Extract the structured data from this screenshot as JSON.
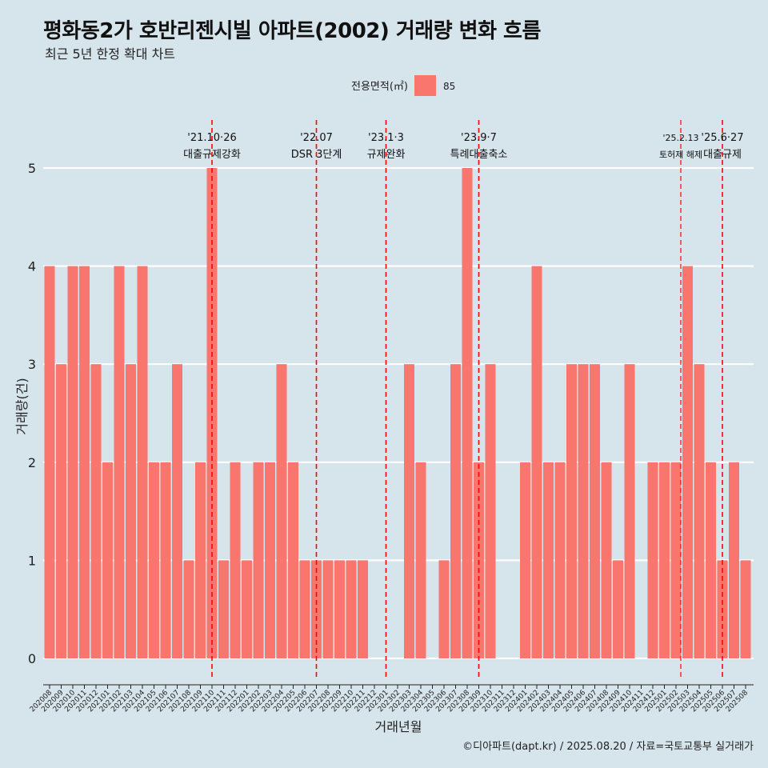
{
  "title": "평화동2가 호반리젠시빌 아파트(2002) 거래량 변화 흐름",
  "subtitle": "최근 5년 한정 확대 차트",
  "caption": "©디아파트(dapt.kr) / 2025.08.20 / 자료=국토교통부 실거래가",
  "colors": {
    "background": "#d6e4eb",
    "bar": "#f8766d",
    "event_line": "#ff0000",
    "grid": "#ffffff"
  },
  "chart_data": {
    "type": "bar",
    "xlabel": "거래년월",
    "ylabel": "거래량(건)",
    "ylim": [
      0,
      5
    ],
    "yticks": [
      0,
      1,
      2,
      3,
      4,
      5
    ],
    "grid": true,
    "legend": {
      "title": "전용면적(㎡)",
      "position": "top",
      "entries": [
        "85"
      ]
    },
    "categories": [
      "202008",
      "202009",
      "202010",
      "202011",
      "202012",
      "202101",
      "202102",
      "202103",
      "202104",
      "202105",
      "202106",
      "202107",
      "202108",
      "202109",
      "202110",
      "202111",
      "202112",
      "202201",
      "202202",
      "202203",
      "202204",
      "202205",
      "202206",
      "202207",
      "202208",
      "202209",
      "202210",
      "202211",
      "202212",
      "202301",
      "202302",
      "202303",
      "202304",
      "202305",
      "202306",
      "202307",
      "202308",
      "202309",
      "202310",
      "202311",
      "202312",
      "202401",
      "202402",
      "202403",
      "202404",
      "202405",
      "202406",
      "202407",
      "202408",
      "202409",
      "202410",
      "202411",
      "202412",
      "202501",
      "202502",
      "202503",
      "202504",
      "202505",
      "202506",
      "202507",
      "202508"
    ],
    "series": [
      {
        "name": "85",
        "values": [
          4,
          3,
          4,
          4,
          3,
          2,
          4,
          3,
          4,
          2,
          2,
          3,
          1,
          2,
          5,
          1,
          2,
          1,
          2,
          2,
          3,
          2,
          1,
          1,
          1,
          1,
          1,
          1,
          0,
          0,
          0,
          3,
          2,
          0,
          1,
          3,
          5,
          2,
          3,
          0,
          0,
          2,
          4,
          2,
          2,
          3,
          3,
          3,
          2,
          1,
          3,
          0,
          2,
          2,
          2,
          4,
          3,
          2,
          1,
          2,
          1
        ]
      }
    ],
    "annotations": [
      {
        "category": "202110",
        "date": "'21.10·26",
        "label": "대출규제강화"
      },
      {
        "category": "202207",
        "date": "'22.07",
        "label": "DSR 3단계"
      },
      {
        "category": "202301",
        "date": "'23.1·3",
        "label": "규제완화"
      },
      {
        "category": "202309",
        "date": "'23.9·7",
        "label": "특례대출축소"
      },
      {
        "category": "202502",
        "date": "'25.2.13",
        "label": "토허제 해제"
      },
      {
        "category": "202506",
        "date": "'25.6·27",
        "label": "대출규제"
      }
    ]
  }
}
